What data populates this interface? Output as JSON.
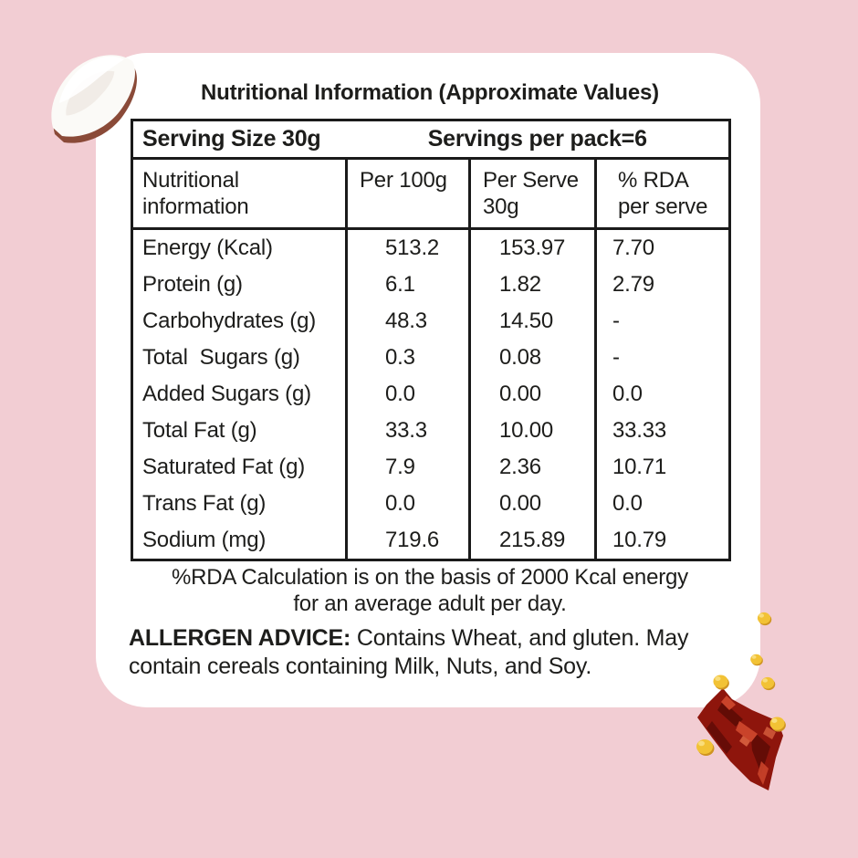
{
  "colors": {
    "background": "#f2cdd3",
    "card": "#ffffff",
    "text": "#1d1d1b",
    "table_border": "#1a1a1a",
    "coconut_flesh": "#fbfaf7",
    "coconut_shade": "#efe8e2",
    "coconut_skin": "#8a4a38",
    "chili_red": "#8e150c",
    "chili_dark": "#5a0a05",
    "chili_highlight": "#c9432a",
    "chili_bright": "#d8603f",
    "corn_yellow": "#f2c235",
    "corn_shadow": "#cf9420",
    "corn_highlight": "#fae083"
  },
  "title": "Nutritional Information (Approximate Values)",
  "table": {
    "serving_size_label": "Serving Size 30g",
    "servings_per_pack_label": "Servings per pack=6",
    "column_headers": {
      "name": "Nutritional\ninformation",
      "per_100g": "Per 100g",
      "per_serve": "Per Serve\n30g",
      "rda": "% RDA\nper serve"
    },
    "rows": [
      {
        "label": "Energy (Kcal)",
        "per_100g": "513.2",
        "per_serve": "153.97",
        "rda": "7.70"
      },
      {
        "label": "Protein (g)",
        "per_100g": "6.1",
        "per_serve": "1.82",
        "rda": "2.79"
      },
      {
        "label": "Carbohydrates (g)",
        "per_100g": "48.3",
        "per_serve": "14.50",
        "rda": "-"
      },
      {
        "label": "Total  Sugars (g)",
        "per_100g": "0.3",
        "per_serve": "0.08",
        "rda": "-"
      },
      {
        "label": "Added Sugars (g)",
        "per_100g": "0.0",
        "per_serve": "0.00",
        "rda": "0.0"
      },
      {
        "label": "Total Fat (g)",
        "per_100g": "33.3",
        "per_serve": "10.00",
        "rda": "33.33"
      },
      {
        "label": "Saturated Fat (g)",
        "per_100g": "7.9",
        "per_serve": "2.36",
        "rda": "10.71"
      },
      {
        "label": "Trans Fat (g)",
        "per_100g": "0.0",
        "per_serve": "0.00",
        "rda": "0.0"
      },
      {
        "label": "Sodium (mg)",
        "per_100g": "719.6",
        "per_serve": "215.89",
        "rda": "10.79"
      }
    ]
  },
  "footnote": {
    "line1": "%RDA Calculation is on the basis of 2000 Kcal energy",
    "line2": "for an average adult per day."
  },
  "allergen": {
    "label": "ALLERGEN ADVICE:",
    "text": " Contains Wheat, and gluten. May contain cereals containing Milk, Nuts, and Soy."
  }
}
